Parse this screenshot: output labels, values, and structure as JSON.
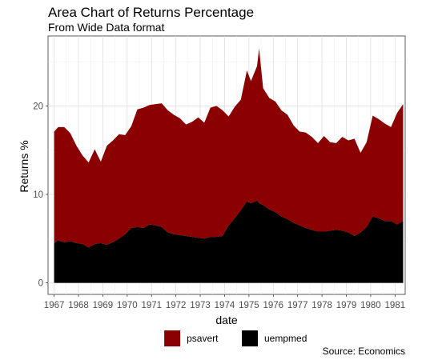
{
  "chart_data": {
    "type": "area",
    "title": "Area Chart of Returns Percentage",
    "subtitle": "From Wide Data format",
    "xlabel": "date",
    "ylabel": "Returns %",
    "caption": "Source: Economics",
    "xlim": [
      "1966-10-01",
      "1981-06-01"
    ],
    "ylim": [
      -1.3,
      27.9
    ],
    "yticks": [
      0,
      10,
      20
    ],
    "xtick_labels": [
      "1967",
      "1968",
      "1969",
      "1970",
      "1971",
      "1972",
      "1973",
      "1974",
      "1975",
      "1976",
      "1977",
      "1978",
      "1979",
      "1980",
      "1981"
    ],
    "grid": true,
    "legend_position": "bottom",
    "x": [
      "1967-01",
      "1967-03",
      "1967-06",
      "1967-09",
      "1967-12",
      "1968-03",
      "1968-06",
      "1968-09",
      "1968-12",
      "1969-03",
      "1969-06",
      "1969-09",
      "1969-12",
      "1970-03",
      "1970-06",
      "1970-09",
      "1970-12",
      "1971-03",
      "1971-06",
      "1971-09",
      "1971-12",
      "1972-03",
      "1972-06",
      "1972-09",
      "1972-12",
      "1973-03",
      "1973-06",
      "1973-09",
      "1973-12",
      "1974-03",
      "1974-06",
      "1974-09",
      "1974-12",
      "1975-02",
      "1975-05",
      "1975-06",
      "1975-08",
      "1975-11",
      "1976-02",
      "1976-05",
      "1976-08",
      "1976-11",
      "1977-02",
      "1977-05",
      "1977-08",
      "1977-11",
      "1978-02",
      "1978-05",
      "1978-08",
      "1978-11",
      "1979-02",
      "1979-05",
      "1979-08",
      "1979-11",
      "1980-02",
      "1980-05",
      "1980-08",
      "1980-11",
      "1981-02",
      "1981-05"
    ],
    "series": [
      {
        "name": "psavert",
        "color": "#8b0000",
        "values": [
          12.6,
          12.8,
          13.0,
          12.2,
          11.0,
          10.0,
          9.6,
          10.7,
          9.2,
          11.2,
          11.5,
          11.8,
          11.2,
          11.5,
          13.3,
          13.6,
          13.5,
          13.7,
          14.0,
          13.8,
          13.5,
          13.2,
          12.6,
          13.0,
          13.6,
          13.1,
          14.6,
          14.8,
          14.2,
          12.3,
          12.6,
          12.5,
          14.8,
          13.8,
          15.2,
          17.5,
          13.2,
          12.6,
          12.5,
          12.0,
          11.8,
          11.0,
          10.6,
          10.8,
          10.5,
          10.0,
          10.8,
          10.0,
          9.8,
          10.6,
          10.4,
          11.0,
          9.0,
          9.6,
          11.4,
          11.2,
          11.0,
          10.6,
          12.6,
          13.2
        ]
      },
      {
        "name": "uempmed",
        "color": "#000000",
        "values": [
          4.5,
          4.8,
          4.6,
          4.7,
          4.5,
          4.4,
          4.0,
          4.4,
          4.5,
          4.3,
          4.6,
          5.0,
          5.5,
          6.2,
          6.3,
          6.2,
          6.6,
          6.5,
          6.3,
          5.7,
          5.5,
          5.4,
          5.3,
          5.2,
          5.1,
          5.0,
          5.2,
          5.2,
          5.3,
          6.5,
          7.3,
          8.2,
          9.2,
          9.0,
          9.3,
          9.0,
          8.8,
          8.3,
          8.0,
          7.5,
          7.2,
          6.8,
          6.5,
          6.2,
          6.0,
          5.8,
          5.8,
          5.9,
          6.0,
          5.9,
          5.7,
          5.3,
          5.7,
          6.3,
          7.5,
          7.3,
          7.0,
          7.0,
          6.6,
          7.0
        ]
      }
    ]
  }
}
